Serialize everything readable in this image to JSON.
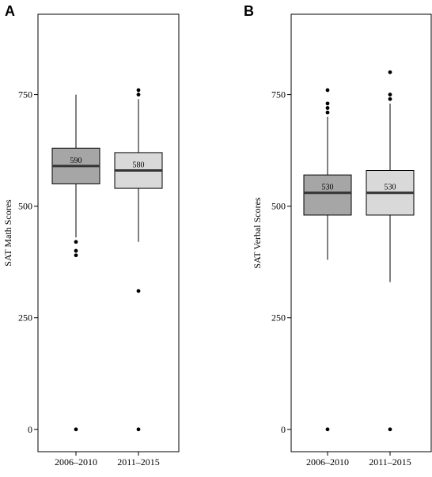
{
  "panels": {
    "a": {
      "letter": "A"
    },
    "b": {
      "letter": "B"
    }
  },
  "chart_data": [
    {
      "type": "box",
      "panel": "A",
      "title": "",
      "xlabel": "",
      "ylabel": "SAT Math Scores",
      "ylim": [
        -50,
        930
      ],
      "yticks": [
        0,
        250,
        500,
        750
      ],
      "grid": false,
      "categories": [
        "2006–2010",
        "2011–2015"
      ],
      "colors": [
        "#a6a6a6",
        "#d9d9d9"
      ],
      "boxes": [
        {
          "category": "2006–2010",
          "whisker_low": 430,
          "q1": 550,
          "median": 590,
          "q3": 630,
          "whisker_high": 750,
          "outliers": [
            420,
            400,
            390,
            0
          ],
          "median_label": "590"
        },
        {
          "category": "2011–2015",
          "whisker_low": 420,
          "q1": 540,
          "median": 580,
          "q3": 620,
          "whisker_high": 740,
          "outliers": [
            760,
            750,
            310,
            0
          ],
          "median_label": "580"
        }
      ]
    },
    {
      "type": "box",
      "panel": "B",
      "title": "",
      "xlabel": "",
      "ylabel": "SAT Verbal Scores",
      "ylim": [
        -50,
        930
      ],
      "yticks": [
        0,
        250,
        500,
        750
      ],
      "grid": false,
      "categories": [
        "2006–2010",
        "2011–2015"
      ],
      "colors": [
        "#a6a6a6",
        "#d9d9d9"
      ],
      "boxes": [
        {
          "category": "2006–2010",
          "whisker_low": 380,
          "q1": 480,
          "median": 530,
          "q3": 570,
          "whisker_high": 700,
          "outliers": [
            760,
            730,
            720,
            710,
            0
          ],
          "median_label": "530"
        },
        {
          "category": "2011–2015",
          "whisker_low": 330,
          "q1": 480,
          "median": 530,
          "q3": 580,
          "whisker_high": 730,
          "outliers": [
            800,
            750,
            740,
            0
          ],
          "median_label": "530"
        }
      ]
    }
  ]
}
